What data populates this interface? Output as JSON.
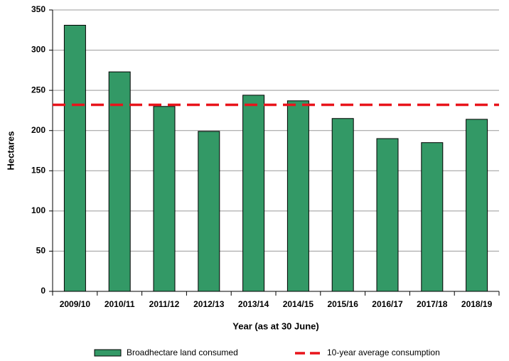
{
  "chart_data": {
    "type": "bar",
    "categories": [
      "2009/10",
      "2010/11",
      "2011/12",
      "2012/13",
      "2013/14",
      "2014/15",
      "2015/16",
      "2016/17",
      "2017/18",
      "2018/19"
    ],
    "series": [
      {
        "name": "Broadhectare land consumed",
        "color": "#339966",
        "values": [
          331,
          273,
          230,
          199,
          244,
          237,
          215,
          190,
          185,
          214
        ]
      }
    ],
    "reference_line": {
      "name": "10-year average consumption",
      "value": 232,
      "color": "#e8141b"
    },
    "xlabel": "Year (as at 30 June)",
    "ylabel": "Hectares",
    "ylim": [
      0,
      350
    ],
    "yticks": [
      0,
      50,
      100,
      150,
      200,
      250,
      300,
      350
    ],
    "grid": true,
    "legend": "bottom"
  }
}
